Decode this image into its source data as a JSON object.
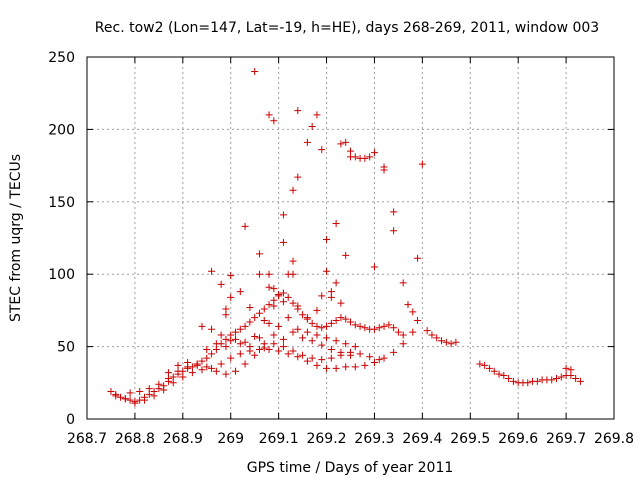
{
  "chart_data": {
    "type": "scatter",
    "title": "Rec. tow2 (Lon=147, Lat=-19, h=HE), days 268-269, 2011, window 003",
    "xlabel": "GPS time / Days of year 2011",
    "ylabel": "STEC from uqrg / TECUs",
    "xlim": [
      268.7,
      269.8
    ],
    "ylim": [
      0,
      250
    ],
    "xticks": [
      268.7,
      268.8,
      268.9,
      269,
      269.1,
      269.2,
      269.3,
      269.4,
      269.5,
      269.6,
      269.7,
      269.8
    ],
    "xtick_labels": [
      "268.7",
      "268.8",
      "268.9",
      "269",
      "269.1",
      "269.2",
      "269.3",
      "269.4",
      "269.5",
      "269.6",
      "269.7",
      "269.8"
    ],
    "yticks": [
      0,
      50,
      100,
      150,
      200,
      250
    ],
    "ytick_labels": [
      "0",
      "50",
      "100",
      "150",
      "200",
      "250"
    ],
    "grid": true,
    "marker": "+",
    "color": "#cc0000",
    "points": [
      [
        268.75,
        19
      ],
      [
        268.76,
        17
      ],
      [
        268.77,
        15
      ],
      [
        268.78,
        14
      ],
      [
        268.79,
        13
      ],
      [
        268.8,
        12
      ],
      [
        268.81,
        13
      ],
      [
        268.82,
        15
      ],
      [
        268.83,
        17
      ],
      [
        268.84,
        19
      ],
      [
        268.85,
        21
      ],
      [
        268.86,
        23
      ],
      [
        268.87,
        26
      ],
      [
        268.88,
        29
      ],
      [
        268.89,
        31
      ],
      [
        268.9,
        33
      ],
      [
        268.91,
        35
      ],
      [
        268.92,
        36
      ],
      [
        268.93,
        38
      ],
      [
        268.94,
        40
      ],
      [
        268.95,
        42
      ],
      [
        268.96,
        45
      ],
      [
        268.97,
        48
      ],
      [
        268.98,
        52
      ],
      [
        268.99,
        55
      ],
      [
        269.0,
        58
      ],
      [
        269.01,
        60
      ],
      [
        269.02,
        62
      ],
      [
        269.03,
        64
      ],
      [
        269.04,
        67
      ],
      [
        269.05,
        70
      ],
      [
        269.06,
        73
      ],
      [
        269.07,
        76
      ],
      [
        269.08,
        79
      ],
      [
        269.09,
        82
      ],
      [
        269.1,
        85
      ],
      [
        269.11,
        87
      ],
      [
        269.12,
        84
      ],
      [
        269.13,
        80
      ],
      [
        269.14,
        76
      ],
      [
        269.15,
        72
      ],
      [
        269.16,
        69
      ],
      [
        269.17,
        66
      ],
      [
        269.18,
        64
      ],
      [
        269.19,
        63
      ],
      [
        269.2,
        64
      ],
      [
        269.21,
        66
      ],
      [
        269.22,
        68
      ],
      [
        269.23,
        70
      ],
      [
        269.24,
        69
      ],
      [
        269.25,
        67
      ],
      [
        269.26,
        65
      ],
      [
        269.27,
        64
      ],
      [
        269.28,
        63
      ],
      [
        269.29,
        62
      ],
      [
        269.3,
        62
      ],
      [
        269.31,
        63
      ],
      [
        269.32,
        64
      ],
      [
        269.33,
        65
      ],
      [
        269.34,
        63
      ],
      [
        269.35,
        60
      ],
      [
        269.36,
        58
      ],
      [
        268.76,
        16
      ],
      [
        268.78,
        14
      ],
      [
        268.8,
        11
      ],
      [
        268.82,
        13
      ],
      [
        268.84,
        16
      ],
      [
        268.86,
        20
      ],
      [
        268.88,
        25
      ],
      [
        268.9,
        29
      ],
      [
        268.92,
        32
      ],
      [
        268.94,
        34
      ],
      [
        268.96,
        35
      ],
      [
        268.98,
        38
      ],
      [
        269.0,
        42
      ],
      [
        269.02,
        45
      ],
      [
        269.04,
        47
      ],
      [
        269.06,
        48
      ],
      [
        269.08,
        48
      ],
      [
        269.1,
        47
      ],
      [
        269.12,
        45
      ],
      [
        269.14,
        43
      ],
      [
        269.16,
        40
      ],
      [
        269.18,
        37
      ],
      [
        269.2,
        35
      ],
      [
        269.22,
        35
      ],
      [
        269.24,
        36
      ],
      [
        269.26,
        36
      ],
      [
        269.28,
        37
      ],
      [
        269.3,
        39
      ],
      [
        269.32,
        42
      ],
      [
        269.34,
        46
      ],
      [
        269.36,
        52
      ],
      [
        269.38,
        60
      ],
      [
        268.79,
        18
      ],
      [
        268.81,
        19
      ],
      [
        268.83,
        21
      ],
      [
        268.85,
        24
      ],
      [
        268.87,
        28
      ],
      [
        268.89,
        33
      ],
      [
        268.91,
        36
      ],
      [
        268.93,
        37
      ],
      [
        268.95,
        36
      ],
      [
        268.97,
        33
      ],
      [
        268.99,
        31
      ],
      [
        269.01,
        33
      ],
      [
        269.03,
        38
      ],
      [
        269.05,
        44
      ],
      [
        269.07,
        49
      ],
      [
        269.09,
        52
      ],
      [
        269.11,
        50
      ],
      [
        269.13,
        47
      ],
      [
        269.15,
        44
      ],
      [
        269.17,
        42
      ],
      [
        269.19,
        41
      ],
      [
        269.21,
        42
      ],
      [
        269.23,
        44
      ],
      [
        269.25,
        46
      ],
      [
        269.27,
        45
      ],
      [
        269.29,
        43
      ],
      [
        269.31,
        41
      ],
      [
        268.87,
        32
      ],
      [
        268.89,
        37
      ],
      [
        268.91,
        39
      ],
      [
        268.93,
        38
      ],
      [
        268.95,
        48
      ],
      [
        268.97,
        52
      ],
      [
        268.99,
        50
      ],
      [
        269.01,
        55
      ],
      [
        269.03,
        53
      ],
      [
        269.05,
        57
      ],
      [
        269.07,
        52
      ],
      [
        269.09,
        58
      ],
      [
        269.11,
        55
      ],
      [
        269.13,
        60
      ],
      [
        269.15,
        56
      ],
      [
        269.17,
        54
      ],
      [
        269.19,
        51
      ],
      [
        269.21,
        48
      ],
      [
        269.23,
        46
      ],
      [
        269.25,
        44
      ],
      [
        268.94,
        64
      ],
      [
        268.96,
        62
      ],
      [
        268.98,
        58
      ],
      [
        269.0,
        54
      ],
      [
        269.02,
        52
      ],
      [
        269.04,
        50
      ],
      [
        269.06,
        56
      ],
      [
        269.08,
        66
      ],
      [
        269.1,
        64
      ],
      [
        269.12,
        70
      ],
      [
        269.14,
        62
      ],
      [
        269.16,
        60
      ],
      [
        269.18,
        58
      ],
      [
        269.2,
        56
      ],
      [
        269.22,
        54
      ],
      [
        269.24,
        52
      ],
      [
        269.26,
        50
      ],
      [
        268.96,
        102
      ],
      [
        268.98,
        93
      ],
      [
        268.99,
        76
      ],
      [
        268.99,
        72
      ],
      [
        269.0,
        84
      ],
      [
        269.0,
        99
      ],
      [
        269.02,
        88
      ],
      [
        269.04,
        77
      ],
      [
        269.06,
        100
      ],
      [
        269.07,
        68
      ],
      [
        269.08,
        100
      ],
      [
        269.08,
        91
      ],
      [
        269.09,
        90
      ],
      [
        269.09,
        78
      ],
      [
        269.1,
        86
      ],
      [
        269.11,
        81
      ],
      [
        269.12,
        100
      ],
      [
        269.13,
        109
      ],
      [
        269.13,
        100
      ],
      [
        269.14,
        78
      ],
      [
        269.16,
        70
      ],
      [
        269.18,
        75
      ],
      [
        269.19,
        85
      ],
      [
        269.2,
        102
      ],
      [
        269.21,
        84
      ],
      [
        269.21,
        88
      ],
      [
        269.22,
        94
      ],
      [
        269.23,
        80
      ],
      [
        269.24,
        113
      ],
      [
        269.06,
        114
      ],
      [
        269.11,
        122
      ],
      [
        269.11,
        141
      ],
      [
        269.13,
        158
      ],
      [
        269.14,
        167
      ],
      [
        269.16,
        191
      ],
      [
        269.17,
        202
      ],
      [
        269.09,
        206
      ],
      [
        269.08,
        210
      ],
      [
        269.14,
        213
      ],
      [
        269.18,
        210
      ],
      [
        269.03,
        133
      ],
      [
        269.2,
        124
      ],
      [
        269.22,
        135
      ],
      [
        269.05,
        240
      ],
      [
        269.19,
        186
      ],
      [
        269.23,
        190
      ],
      [
        269.24,
        191
      ],
      [
        269.25,
        181
      ],
      [
        269.25,
        185
      ],
      [
        269.26,
        181
      ],
      [
        269.27,
        180
      ],
      [
        269.28,
        180
      ],
      [
        269.29,
        181
      ],
      [
        269.3,
        184
      ],
      [
        269.32,
        172
      ],
      [
        269.32,
        174
      ],
      [
        269.34,
        143
      ],
      [
        269.34,
        130
      ],
      [
        269.4,
        176
      ],
      [
        269.39,
        111
      ],
      [
        269.3,
        105
      ],
      [
        269.36,
        94
      ],
      [
        269.37,
        79
      ],
      [
        269.38,
        74
      ],
      [
        269.39,
        68
      ],
      [
        269.41,
        61
      ],
      [
        269.42,
        58
      ],
      [
        269.43,
        56
      ],
      [
        269.44,
        54
      ],
      [
        269.45,
        53
      ],
      [
        269.46,
        52
      ],
      [
        269.47,
        53
      ],
      [
        269.52,
        38
      ],
      [
        269.53,
        37
      ],
      [
        269.54,
        35
      ],
      [
        269.55,
        33
      ],
      [
        269.56,
        31
      ],
      [
        269.57,
        30
      ],
      [
        269.58,
        28
      ],
      [
        269.59,
        26
      ],
      [
        269.6,
        25
      ],
      [
        269.61,
        25
      ],
      [
        269.62,
        25
      ],
      [
        269.63,
        26
      ],
      [
        269.64,
        26
      ],
      [
        269.65,
        27
      ],
      [
        269.66,
        27
      ],
      [
        269.67,
        27
      ],
      [
        269.68,
        28
      ],
      [
        269.69,
        29
      ],
      [
        269.7,
        30
      ],
      [
        269.71,
        30
      ],
      [
        269.72,
        28
      ],
      [
        269.73,
        26
      ],
      [
        269.7,
        35
      ],
      [
        269.71,
        34
      ]
    ]
  }
}
